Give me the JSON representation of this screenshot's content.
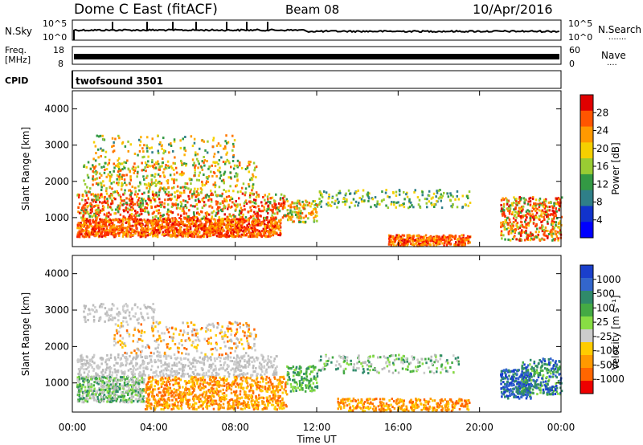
{
  "header": {
    "station": "Dome C East (fitACF)",
    "beam": "Beam 08",
    "date": "10/Apr/2016"
  },
  "side_labels": {
    "nsky": "N.Sky",
    "freq_1": "Freq.",
    "freq_2": "[MHz]",
    "cpid": "CPID",
    "nsearch": "N.Search",
    "nsearch_dots": "·······",
    "nave": "Nave",
    "nave_dots": "····"
  },
  "cpid_name": "twofsound 3501",
  "chart_data": [
    {
      "type": "line",
      "name": "noise-panel",
      "left_ticks": [
        "10^5",
        "10^0"
      ],
      "right_ticks": [
        "10^5",
        "10^0"
      ]
    },
    {
      "type": "line",
      "name": "frequency-panel",
      "left_ticks": [
        "18",
        "8"
      ],
      "right_ticks": [
        "60",
        "0"
      ]
    },
    {
      "type": "heatmap",
      "name": "power-panel",
      "ylabel": "Slant Range [km]",
      "yticks": [
        "4000",
        "3000",
        "2000",
        "1000"
      ],
      "ylim": [
        200,
        4500
      ],
      "colorbar": {
        "label": "Power [dB]",
        "ticks": [
          "28",
          "24",
          "20",
          "16",
          "12",
          "8",
          "4"
        ],
        "colors": [
          "#e00000",
          "#ff5500",
          "#ff9900",
          "#f5d000",
          "#99cc33",
          "#339944",
          "#2f7f88",
          "#1133cc",
          "#0000ff"
        ]
      }
    },
    {
      "type": "heatmap",
      "name": "velocity-panel",
      "ylabel": "Slant Range [km]",
      "yticks": [
        "4000",
        "3000",
        "2000",
        "1000"
      ],
      "ylim": [
        200,
        4500
      ],
      "xlabel": "Time UT",
      "xticks": [
        "00:00",
        "04:00",
        "08:00",
        "12:00",
        "16:00",
        "20:00",
        "00:00"
      ],
      "colorbar": {
        "label": "Velocity [m s⁻¹]",
        "ticks": [
          "1000",
          "500",
          "100",
          "25",
          "-25",
          "-100",
          "-500",
          "-1000"
        ],
        "colors": [
          "#1a3fcc",
          "#3366cc",
          "#2f8a6a",
          "#44aa44",
          "#88dd44",
          "#cccccc",
          "#ffcc00",
          "#ff9900",
          "#ff6600",
          "#ee0000"
        ]
      }
    }
  ]
}
